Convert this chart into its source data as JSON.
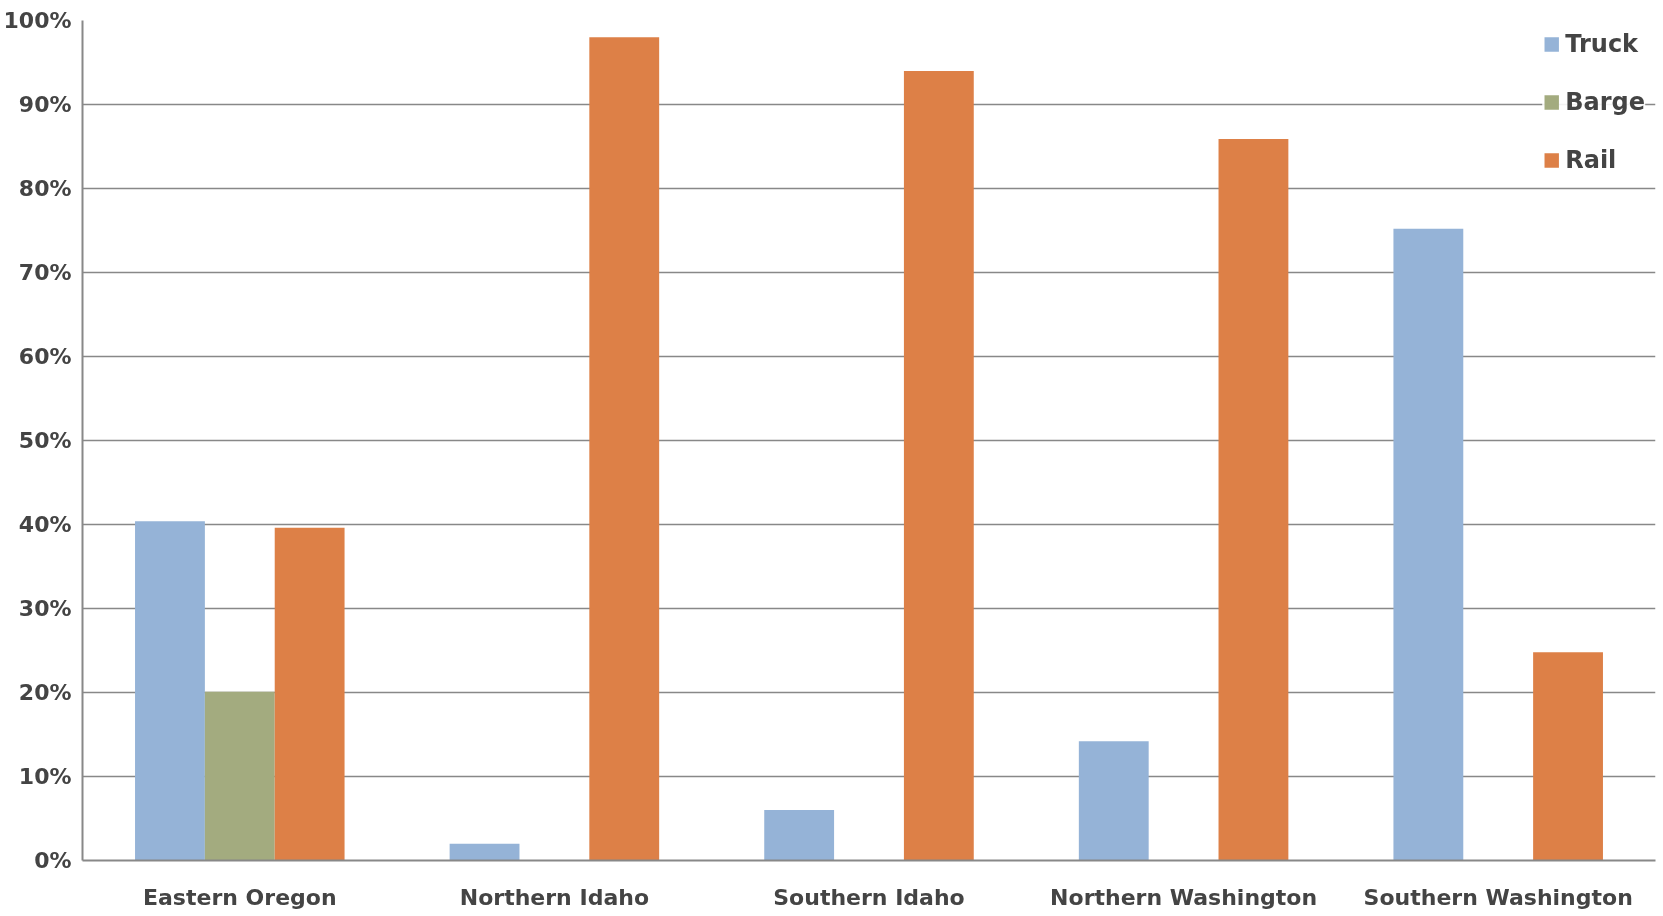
{
  "chart_data": {
    "type": "bar",
    "categories": [
      "Eastern Oregon",
      "Northern Idaho",
      "Southern Idaho",
      "Northern Washington",
      "Southern Washington"
    ],
    "series": [
      {
        "name": "Truck",
        "color": "#95b3d7",
        "values": [
          40.4,
          2.0,
          6.0,
          14.2,
          75.2
        ]
      },
      {
        "name": "Barge",
        "color": "#a3ab7f",
        "values": [
          20.1,
          0,
          0,
          0,
          0
        ]
      },
      {
        "name": "Rail",
        "color": "#dd8047",
        "values": [
          39.6,
          98.0,
          94.0,
          85.9,
          24.8
        ]
      }
    ],
    "ylim": [
      0,
      100
    ],
    "yticks": [
      {
        "value": 0,
        "label": "0%"
      },
      {
        "value": 10,
        "label": "10%"
      },
      {
        "value": 20,
        "label": "20%"
      },
      {
        "value": 30,
        "label": "30%"
      },
      {
        "value": 40,
        "label": "40%"
      },
      {
        "value": 50,
        "label": "50%"
      },
      {
        "value": 60,
        "label": "60%"
      },
      {
        "value": 70,
        "label": "70%"
      },
      {
        "value": 80,
        "label": "80%"
      },
      {
        "value": 90,
        "label": "90%"
      },
      {
        "value": 100,
        "label": "100%"
      }
    ],
    "grid": "y",
    "legend": "top right"
  }
}
